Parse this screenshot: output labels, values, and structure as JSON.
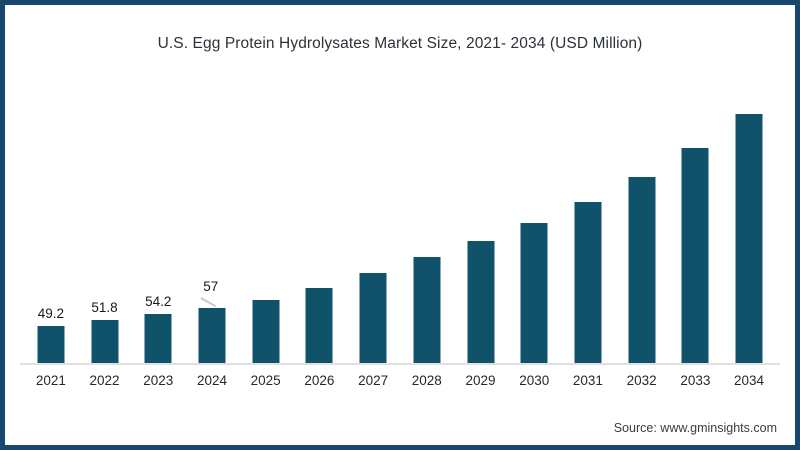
{
  "page": {
    "background": "#FFFFFF",
    "frame_border_color": "#1A476F"
  },
  "chart_data": {
    "type": "bar",
    "title": "U.S. Egg Protein Hydrolysates Market Size, 2021- 2034 (USD Million)",
    "categories": [
      "2021",
      "2022",
      "2023",
      "2024",
      "2025",
      "2026",
      "2027",
      "2028",
      "2029",
      "2030",
      "2031",
      "2032",
      "2033",
      "2034"
    ],
    "values": [
      49.2,
      51.8,
      54.2,
      57,
      60.5,
      65.7,
      72.2,
      79.1,
      86.0,
      94.2,
      103.3,
      114.2,
      126.7,
      141.4
    ],
    "value_labels": [
      "49.2",
      "51.8",
      "54.2",
      "57",
      "",
      "",
      "",
      "",
      "",
      "",
      "",
      "",
      "",
      ""
    ],
    "unit": "USD Million",
    "bar_color": "#0F5269",
    "axis_line_color": "#E0E0E0",
    "leader_line_color": "#B3CFDD",
    "ylim": [
      33,
      145
    ],
    "grid": false,
    "legend": false,
    "xlabel": "",
    "ylabel": ""
  },
  "source": {
    "text": "Source: www.gminsights.com"
  }
}
